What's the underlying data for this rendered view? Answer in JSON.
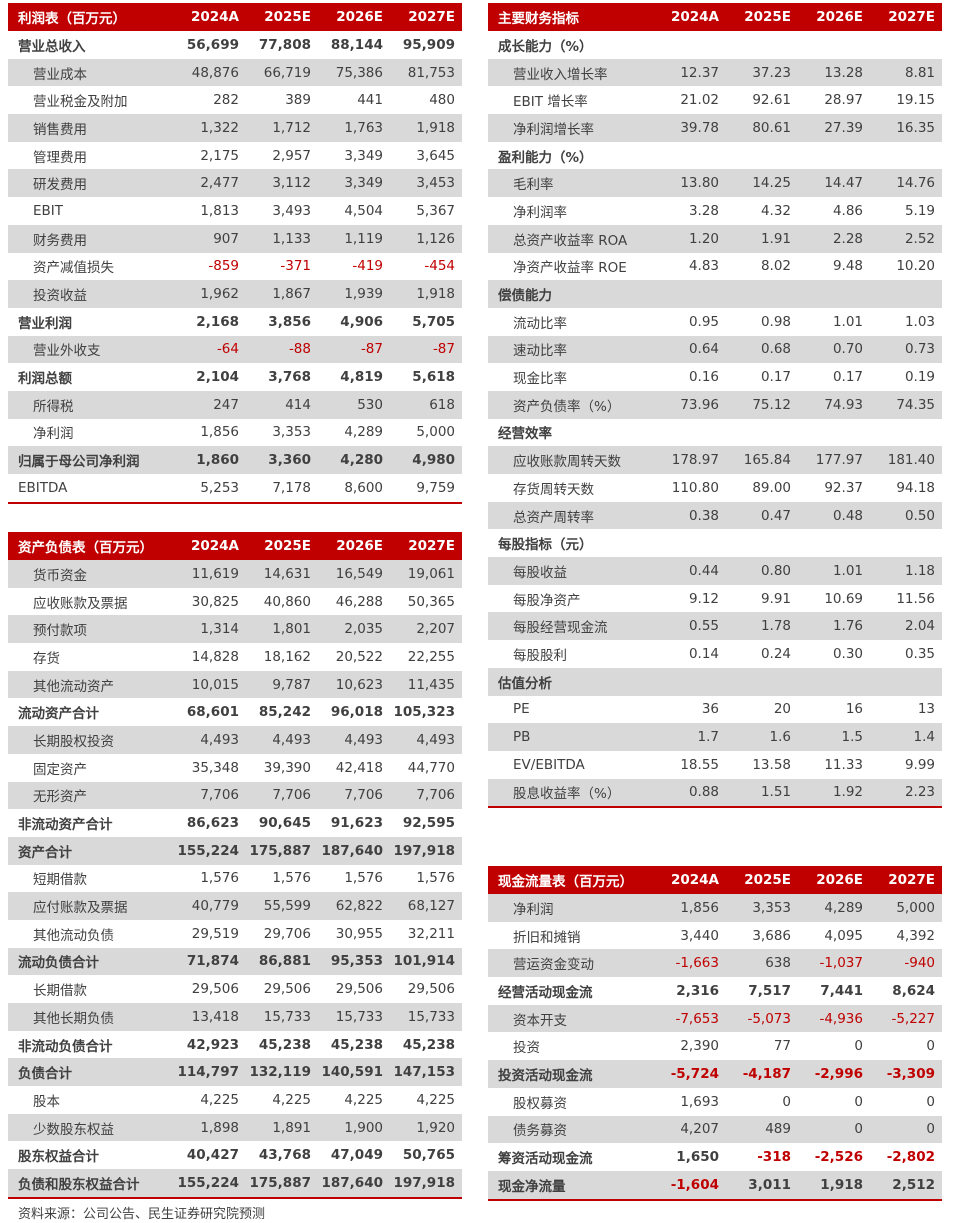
{
  "colors": {
    "accent": "#c00000",
    "stripe": "#d9d9d9",
    "text": "#404040"
  },
  "tables": {
    "income": {
      "title": "利润表（百万元）",
      "columns": [
        "2024A",
        "2025E",
        "2026E",
        "2027E"
      ],
      "rows": [
        {
          "label": "营业总收入",
          "level": "total",
          "values": [
            "56,699",
            "77,808",
            "88,144",
            "95,909"
          ]
        },
        {
          "label": "营业成本",
          "level": "item",
          "values": [
            "48,876",
            "66,719",
            "75,386",
            "81,753"
          ]
        },
        {
          "label": "营业税金及附加",
          "level": "item",
          "values": [
            "282",
            "389",
            "441",
            "480"
          ]
        },
        {
          "label": "销售费用",
          "level": "item",
          "values": [
            "1,322",
            "1,712",
            "1,763",
            "1,918"
          ]
        },
        {
          "label": "管理费用",
          "level": "item",
          "values": [
            "2,175",
            "2,957",
            "3,349",
            "3,645"
          ]
        },
        {
          "label": "研发费用",
          "level": "item",
          "values": [
            "2,477",
            "3,112",
            "3,349",
            "3,453"
          ]
        },
        {
          "label": "EBIT",
          "level": "item",
          "values": [
            "1,813",
            "3,493",
            "4,504",
            "5,367"
          ]
        },
        {
          "label": "财务费用",
          "level": "item",
          "values": [
            "907",
            "1,133",
            "1,119",
            "1,126"
          ]
        },
        {
          "label": "资产减值损失",
          "level": "item",
          "values": [
            "-859",
            "-371",
            "-419",
            "-454"
          ]
        },
        {
          "label": "投资收益",
          "level": "item",
          "values": [
            "1,962",
            "1,867",
            "1,939",
            "1,918"
          ]
        },
        {
          "label": "营业利润",
          "level": "total",
          "values": [
            "2,168",
            "3,856",
            "4,906",
            "5,705"
          ]
        },
        {
          "label": "营业外收支",
          "level": "item",
          "values": [
            "-64",
            "-88",
            "-87",
            "-87"
          ]
        },
        {
          "label": "利润总额",
          "level": "total",
          "values": [
            "2,104",
            "3,768",
            "4,819",
            "5,618"
          ]
        },
        {
          "label": "所得税",
          "level": "item",
          "values": [
            "247",
            "414",
            "530",
            "618"
          ]
        },
        {
          "label": "净利润",
          "level": "item",
          "values": [
            "1,856",
            "3,353",
            "4,289",
            "5,000"
          ]
        },
        {
          "label": "归属于母公司净利润",
          "level": "total",
          "values": [
            "1,860",
            "3,360",
            "4,280",
            "4,980"
          ]
        },
        {
          "label": "EBITDA",
          "level": "plain",
          "values": [
            "5,253",
            "7,178",
            "8,600",
            "9,759"
          ]
        }
      ]
    },
    "balance": {
      "title": "资产负债表（百万元）",
      "columns": [
        "2024A",
        "2025E",
        "2026E",
        "2027E"
      ],
      "rows": [
        {
          "label": "货币资金",
          "level": "item",
          "values": [
            "11,619",
            "14,631",
            "16,549",
            "19,061"
          ]
        },
        {
          "label": "应收账款及票据",
          "level": "item",
          "values": [
            "30,825",
            "40,860",
            "46,288",
            "50,365"
          ]
        },
        {
          "label": "预付款项",
          "level": "item",
          "values": [
            "1,314",
            "1,801",
            "2,035",
            "2,207"
          ]
        },
        {
          "label": "存货",
          "level": "item",
          "values": [
            "14,828",
            "18,162",
            "20,522",
            "22,255"
          ]
        },
        {
          "label": "其他流动资产",
          "level": "item",
          "values": [
            "10,015",
            "9,787",
            "10,623",
            "11,435"
          ]
        },
        {
          "label": "流动资产合计",
          "level": "total",
          "values": [
            "68,601",
            "85,242",
            "96,018",
            "105,323"
          ]
        },
        {
          "label": "长期股权投资",
          "level": "item",
          "values": [
            "4,493",
            "4,493",
            "4,493",
            "4,493"
          ]
        },
        {
          "label": "固定资产",
          "level": "item",
          "values": [
            "35,348",
            "39,390",
            "42,418",
            "44,770"
          ]
        },
        {
          "label": "无形资产",
          "level": "item",
          "values": [
            "7,706",
            "7,706",
            "7,706",
            "7,706"
          ]
        },
        {
          "label": "非流动资产合计",
          "level": "total",
          "values": [
            "86,623",
            "90,645",
            "91,623",
            "92,595"
          ]
        },
        {
          "label": "资产合计",
          "level": "total",
          "values": [
            "155,224",
            "175,887",
            "187,640",
            "197,918"
          ]
        },
        {
          "label": "短期借款",
          "level": "item",
          "values": [
            "1,576",
            "1,576",
            "1,576",
            "1,576"
          ]
        },
        {
          "label": "应付账款及票据",
          "level": "item",
          "values": [
            "40,779",
            "55,599",
            "62,822",
            "68,127"
          ]
        },
        {
          "label": "其他流动负债",
          "level": "item",
          "values": [
            "29,519",
            "29,706",
            "30,955",
            "32,211"
          ]
        },
        {
          "label": "流动负债合计",
          "level": "total",
          "values": [
            "71,874",
            "86,881",
            "95,353",
            "101,914"
          ]
        },
        {
          "label": "长期借款",
          "level": "item",
          "values": [
            "29,506",
            "29,506",
            "29,506",
            "29,506"
          ]
        },
        {
          "label": "其他长期负债",
          "level": "item",
          "values": [
            "13,418",
            "15,733",
            "15,733",
            "15,733"
          ]
        },
        {
          "label": "非流动负债合计",
          "level": "total",
          "values": [
            "42,923",
            "45,238",
            "45,238",
            "45,238"
          ]
        },
        {
          "label": "负债合计",
          "level": "total",
          "values": [
            "114,797",
            "132,119",
            "140,591",
            "147,153"
          ]
        },
        {
          "label": "股本",
          "level": "item",
          "values": [
            "4,225",
            "4,225",
            "4,225",
            "4,225"
          ]
        },
        {
          "label": "少数股东权益",
          "level": "item",
          "values": [
            "1,898",
            "1,891",
            "1,900",
            "1,920"
          ]
        },
        {
          "label": "股东权益合计",
          "level": "total",
          "values": [
            "40,427",
            "43,768",
            "47,049",
            "50,765"
          ]
        },
        {
          "label": "负债和股东权益合计",
          "level": "total",
          "values": [
            "155,224",
            "175,887",
            "187,640",
            "197,918"
          ]
        }
      ]
    },
    "ratios": {
      "title": "主要财务指标",
      "columns": [
        "2024A",
        "2025E",
        "2026E",
        "2027E"
      ],
      "rows": [
        {
          "label": "成长能力（%）",
          "level": "section",
          "values": [
            "",
            "",
            "",
            ""
          ]
        },
        {
          "label": "营业收入增长率",
          "level": "item",
          "values": [
            "12.37",
            "37.23",
            "13.28",
            "8.81"
          ]
        },
        {
          "label": "EBIT 增长率",
          "level": "item",
          "values": [
            "21.02",
            "92.61",
            "28.97",
            "19.15"
          ]
        },
        {
          "label": "净利润增长率",
          "level": "item",
          "values": [
            "39.78",
            "80.61",
            "27.39",
            "16.35"
          ]
        },
        {
          "label": "盈利能力（%）",
          "level": "section",
          "values": [
            "",
            "",
            "",
            ""
          ]
        },
        {
          "label": "毛利率",
          "level": "item",
          "values": [
            "13.80",
            "14.25",
            "14.47",
            "14.76"
          ]
        },
        {
          "label": "净利润率",
          "level": "item",
          "values": [
            "3.28",
            "4.32",
            "4.86",
            "5.19"
          ]
        },
        {
          "label": "总资产收益率 ROA",
          "level": "item",
          "values": [
            "1.20",
            "1.91",
            "2.28",
            "2.52"
          ]
        },
        {
          "label": "净资产收益率 ROE",
          "level": "item",
          "values": [
            "4.83",
            "8.02",
            "9.48",
            "10.20"
          ]
        },
        {
          "label": "偿债能力",
          "level": "section",
          "values": [
            "",
            "",
            "",
            ""
          ]
        },
        {
          "label": "流动比率",
          "level": "item",
          "values": [
            "0.95",
            "0.98",
            "1.01",
            "1.03"
          ]
        },
        {
          "label": "速动比率",
          "level": "item",
          "values": [
            "0.64",
            "0.68",
            "0.70",
            "0.73"
          ]
        },
        {
          "label": "现金比率",
          "level": "item",
          "values": [
            "0.16",
            "0.17",
            "0.17",
            "0.19"
          ]
        },
        {
          "label": "资产负债率（%）",
          "level": "item",
          "values": [
            "73.96",
            "75.12",
            "74.93",
            "74.35"
          ]
        },
        {
          "label": "经营效率",
          "level": "section",
          "values": [
            "",
            "",
            "",
            ""
          ]
        },
        {
          "label": "应收账款周转天数",
          "level": "item",
          "values": [
            "178.97",
            "165.84",
            "177.97",
            "181.40"
          ]
        },
        {
          "label": "存货周转天数",
          "level": "item",
          "values": [
            "110.80",
            "89.00",
            "92.37",
            "94.18"
          ]
        },
        {
          "label": "总资产周转率",
          "level": "item",
          "values": [
            "0.38",
            "0.47",
            "0.48",
            "0.50"
          ]
        },
        {
          "label": "每股指标（元）",
          "level": "section",
          "values": [
            "",
            "",
            "",
            ""
          ]
        },
        {
          "label": "每股收益",
          "level": "item",
          "values": [
            "0.44",
            "0.80",
            "1.01",
            "1.18"
          ]
        },
        {
          "label": "每股净资产",
          "level": "item",
          "values": [
            "9.12",
            "9.91",
            "10.69",
            "11.56"
          ]
        },
        {
          "label": "每股经营现金流",
          "level": "item",
          "values": [
            "0.55",
            "1.78",
            "1.76",
            "2.04"
          ]
        },
        {
          "label": "每股股利",
          "level": "item",
          "values": [
            "0.14",
            "0.24",
            "0.30",
            "0.35"
          ]
        },
        {
          "label": "估值分析",
          "level": "section",
          "values": [
            "",
            "",
            "",
            ""
          ]
        },
        {
          "label": "PE",
          "level": "item",
          "values": [
            "36",
            "20",
            "16",
            "13"
          ]
        },
        {
          "label": "PB",
          "level": "item",
          "values": [
            "1.7",
            "1.6",
            "1.5",
            "1.4"
          ]
        },
        {
          "label": "EV/EBITDA",
          "level": "item",
          "values": [
            "18.55",
            "13.58",
            "11.33",
            "9.99"
          ]
        },
        {
          "label": "股息收益率（%）",
          "level": "item",
          "values": [
            "0.88",
            "1.51",
            "1.92",
            "2.23"
          ]
        }
      ]
    },
    "cashflow": {
      "title": "现金流量表（百万元）",
      "columns": [
        "2024A",
        "2025E",
        "2026E",
        "2027E"
      ],
      "rows": [
        {
          "label": "净利润",
          "level": "item",
          "values": [
            "1,856",
            "3,353",
            "4,289",
            "5,000"
          ]
        },
        {
          "label": "折旧和摊销",
          "level": "item",
          "values": [
            "3,440",
            "3,686",
            "4,095",
            "4,392"
          ]
        },
        {
          "label": "营运资金变动",
          "level": "item",
          "values": [
            "-1,663",
            "638",
            "-1,037",
            "-940"
          ]
        },
        {
          "label": "经营活动现金流",
          "level": "total",
          "values": [
            "2,316",
            "7,517",
            "7,441",
            "8,624"
          ]
        },
        {
          "label": "资本开支",
          "level": "item",
          "values": [
            "-7,653",
            "-5,073",
            "-4,936",
            "-5,227"
          ]
        },
        {
          "label": "投资",
          "level": "item",
          "values": [
            "2,390",
            "77",
            "0",
            "0"
          ]
        },
        {
          "label": "投资活动现金流",
          "level": "total",
          "values": [
            "-5,724",
            "-4,187",
            "-2,996",
            "-3,309"
          ]
        },
        {
          "label": "股权募资",
          "level": "item",
          "values": [
            "1,693",
            "0",
            "0",
            "0"
          ]
        },
        {
          "label": "债务募资",
          "level": "item",
          "values": [
            "4,207",
            "489",
            "0",
            "0"
          ]
        },
        {
          "label": "筹资活动现金流",
          "level": "total",
          "values": [
            "1,650",
            "-318",
            "-2,526",
            "-2,802"
          ]
        },
        {
          "label": "现金净流量",
          "level": "total",
          "values": [
            "-1,604",
            "3,011",
            "1,918",
            "2,512"
          ]
        }
      ]
    }
  },
  "source": "资料来源：公司公告、民生证券研究院预测"
}
